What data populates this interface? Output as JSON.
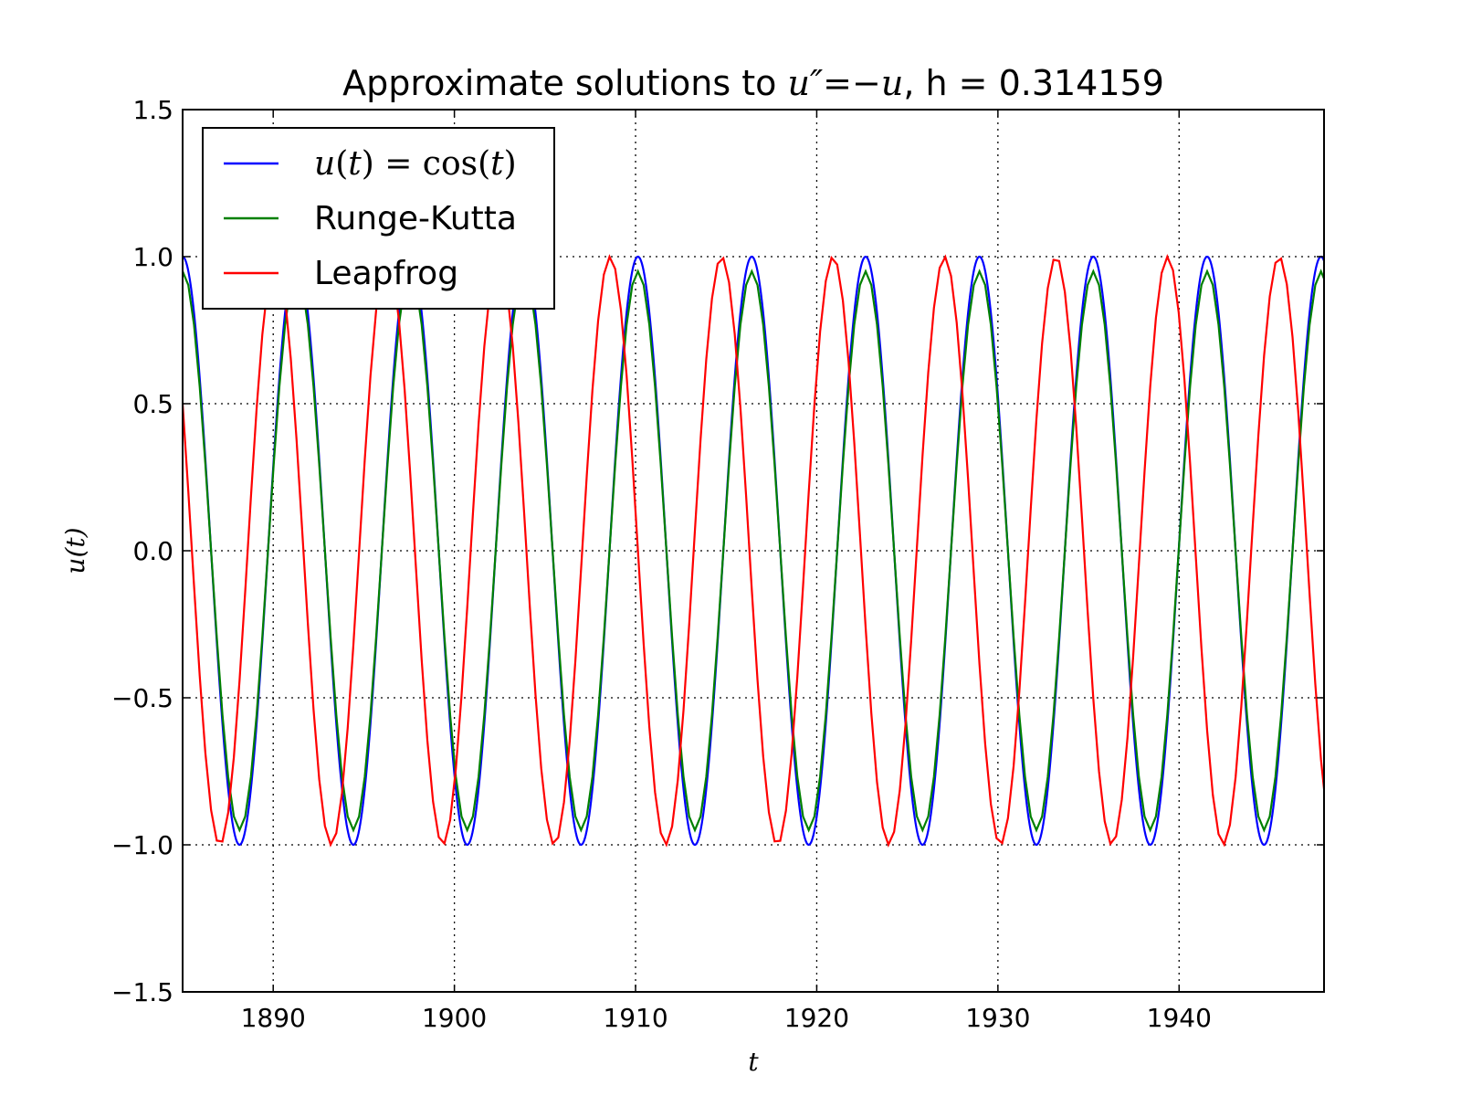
{
  "chart_data": {
    "type": "line",
    "title": {
      "prefix": "Approximate solutions to ",
      "equation": "u″=−u",
      "suffix": ", h = 0.314159"
    },
    "xlabel": "t",
    "ylabel": "u(t)",
    "xlim": [
      1885,
      1948
    ],
    "ylim": [
      -1.5,
      1.5
    ],
    "x_ticks": [
      1890,
      1900,
      1910,
      1920,
      1930,
      1940
    ],
    "x_tick_labels": [
      "1890",
      "1900",
      "1910",
      "1920",
      "1930",
      "1940"
    ],
    "y_ticks": [
      -1.5,
      -1.0,
      -0.5,
      0.0,
      0.5,
      1.0,
      1.5
    ],
    "y_tick_labels": [
      "−1.5",
      "−1.0",
      "−0.5",
      "0.0",
      "0.5",
      "1.0",
      "1.5"
    ],
    "grid": true,
    "legend_position": "upper-left",
    "step_h": 0.314159,
    "series": [
      {
        "name": "u(t) = cos(t)",
        "label_parts": [
          "u",
          "(",
          "t",
          ") = cos(",
          "t",
          ")"
        ],
        "color": "#0000ff",
        "amplitude": 1.0,
        "period": 6.2832,
        "phase_ref_t": 1885.0,
        "phase_ref_value": 1.0
      },
      {
        "name": "Runge-Kutta",
        "color": "#008000",
        "amplitude": 0.95,
        "period": 6.2832,
        "phase_ref_t": 1885.0,
        "phase_ref_value": 0.95
      },
      {
        "name": "Leapfrog",
        "color": "#ff0000",
        "amplitude": 1.0,
        "period": 6.1545,
        "phase_ref_t": 1885.0,
        "phase_ref_value": 0.5
      }
    ]
  }
}
